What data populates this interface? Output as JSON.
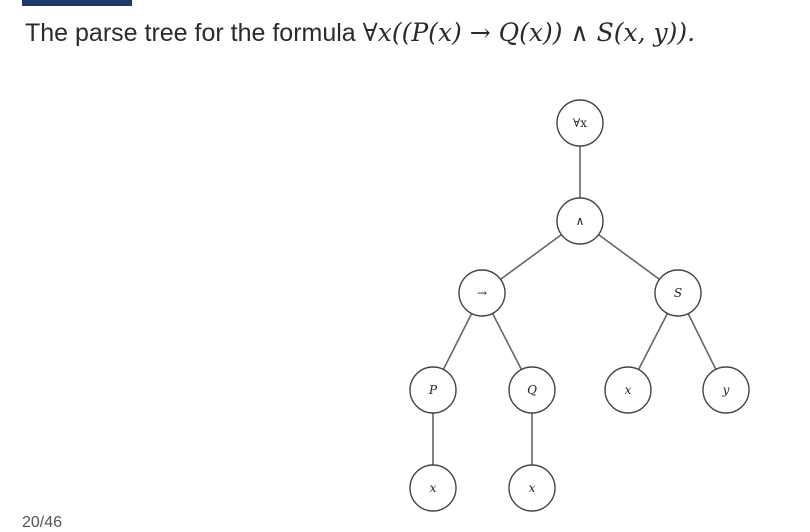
{
  "title": {
    "prefix": "The parse tree for the formula ",
    "formula": "∀x((P(x) → Q(x)) ∧ S(x, y))."
  },
  "page_number": "20/46",
  "tree": {
    "nodes": [
      {
        "id": "forall",
        "label": "∀x",
        "italic": false
      },
      {
        "id": "and",
        "label": "∧",
        "italic": false
      },
      {
        "id": "implies",
        "label": "→",
        "italic": false
      },
      {
        "id": "S",
        "label": "S",
        "italic": true
      },
      {
        "id": "P",
        "label": "P",
        "italic": true
      },
      {
        "id": "Q",
        "label": "Q",
        "italic": true
      },
      {
        "id": "x_S",
        "label": "x",
        "italic": true
      },
      {
        "id": "y",
        "label": "y",
        "italic": true
      },
      {
        "id": "x_P",
        "label": "x",
        "italic": true
      },
      {
        "id": "x_Q",
        "label": "x",
        "italic": true
      }
    ],
    "edges": [
      [
        "forall",
        "and"
      ],
      [
        "and",
        "implies"
      ],
      [
        "and",
        "S"
      ],
      [
        "implies",
        "P"
      ],
      [
        "implies",
        "Q"
      ],
      [
        "S",
        "x_S"
      ],
      [
        "S",
        "y"
      ],
      [
        "P",
        "x_P"
      ],
      [
        "Q",
        "x_Q"
      ]
    ]
  }
}
